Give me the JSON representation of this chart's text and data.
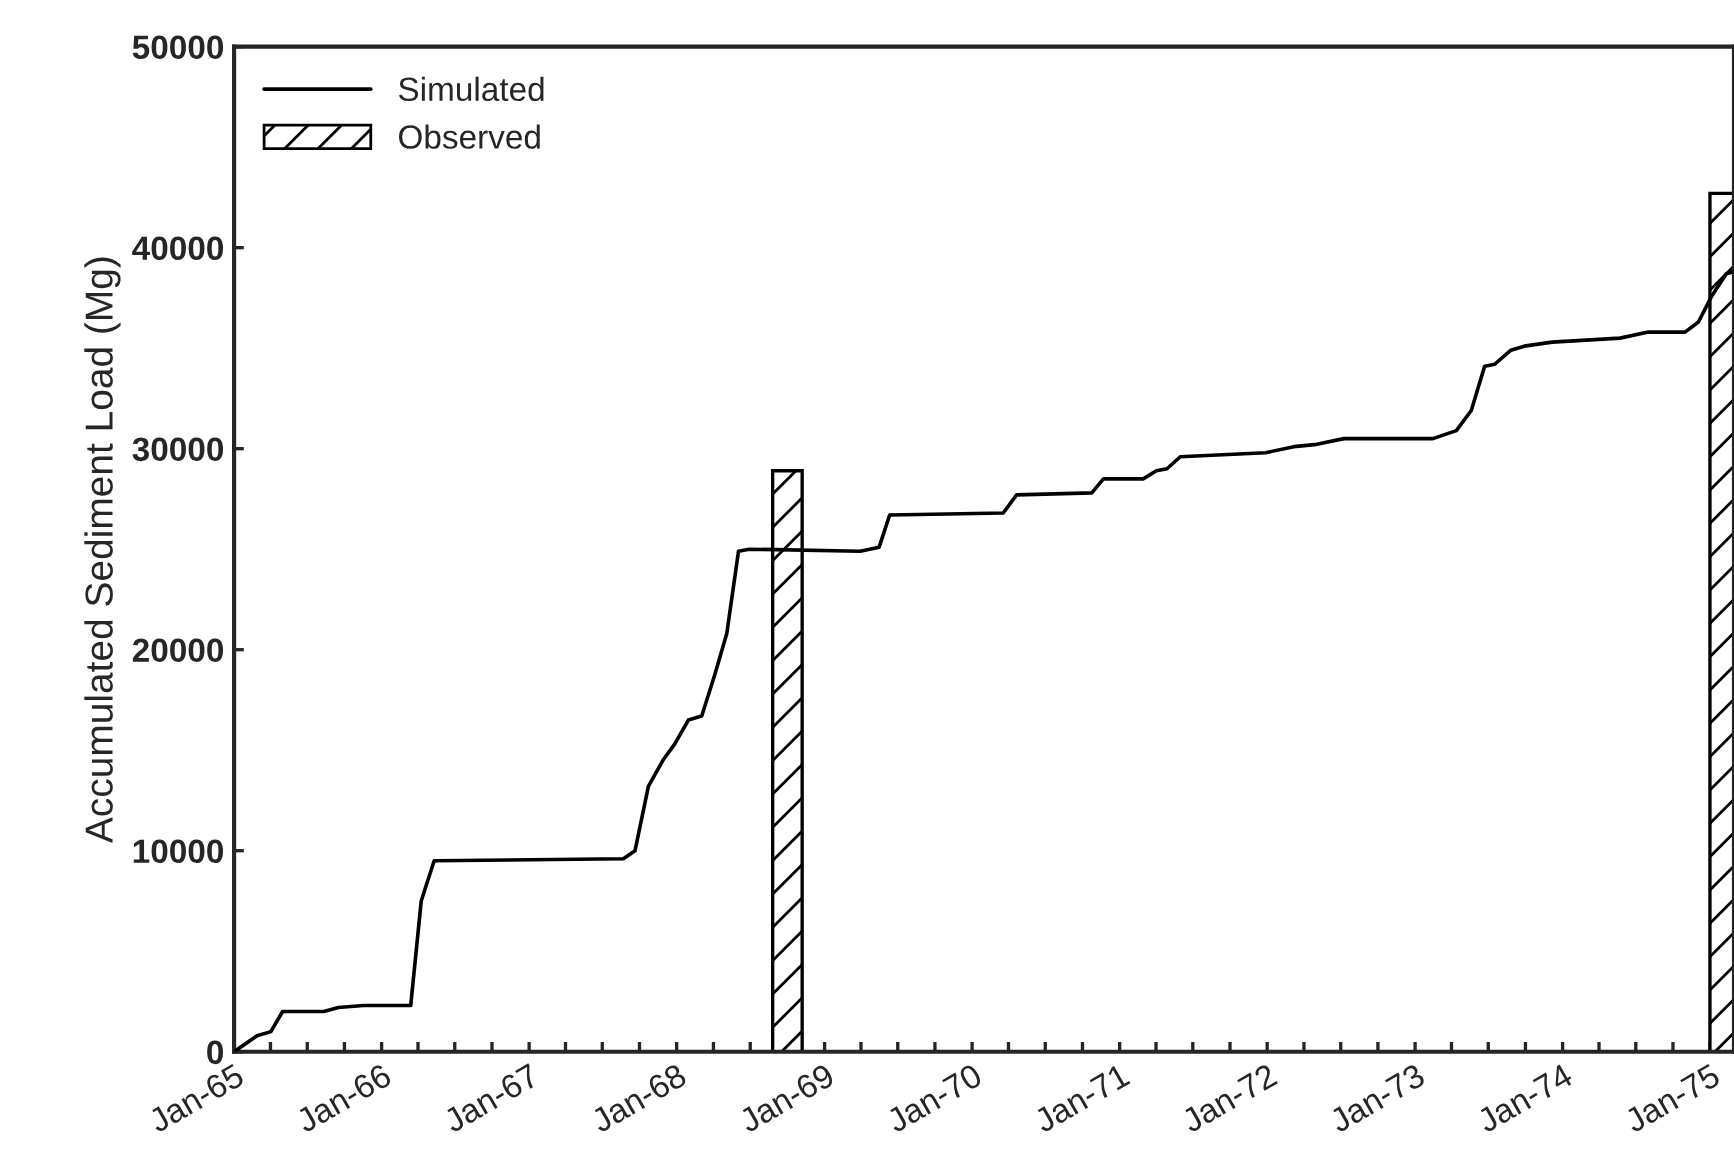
{
  "chart_data": {
    "type": "line",
    "ylabel": "Accumulated Sediment Load (Mg)",
    "xlim": [
      "1965-01-01",
      "1975-03-01"
    ],
    "ylim": [
      0,
      50000
    ],
    "yticks": [
      0,
      10000,
      20000,
      30000,
      40000,
      50000
    ],
    "xticks": [
      {
        "value": "1965-01-01",
        "label": "Jan-65"
      },
      {
        "value": "1965-04-01",
        "label": null
      },
      {
        "value": "1965-07-01",
        "label": null
      },
      {
        "value": "1965-10-01",
        "label": null
      },
      {
        "value": "1966-01-01",
        "label": "Jan-66"
      },
      {
        "value": "1966-04-01",
        "label": null
      },
      {
        "value": "1966-07-01",
        "label": null
      },
      {
        "value": "1966-10-01",
        "label": null
      },
      {
        "value": "1967-01-01",
        "label": "Jan-67"
      },
      {
        "value": "1967-04-01",
        "label": null
      },
      {
        "value": "1967-07-01",
        "label": null
      },
      {
        "value": "1967-10-01",
        "label": null
      },
      {
        "value": "1968-01-01",
        "label": "Jan-68"
      },
      {
        "value": "1968-04-01",
        "label": null
      },
      {
        "value": "1968-07-01",
        "label": null
      },
      {
        "value": "1968-10-01",
        "label": null
      },
      {
        "value": "1969-01-01",
        "label": "Jan-69"
      },
      {
        "value": "1969-04-01",
        "label": null
      },
      {
        "value": "1969-07-01",
        "label": null
      },
      {
        "value": "1969-10-01",
        "label": null
      },
      {
        "value": "1970-01-01",
        "label": "Jan-70"
      },
      {
        "value": "1970-04-01",
        "label": null
      },
      {
        "value": "1970-07-01",
        "label": null
      },
      {
        "value": "1970-10-01",
        "label": null
      },
      {
        "value": "1971-01-01",
        "label": "Jan-71"
      },
      {
        "value": "1971-04-01",
        "label": null
      },
      {
        "value": "1971-07-01",
        "label": null
      },
      {
        "value": "1971-10-01",
        "label": null
      },
      {
        "value": "1972-01-01",
        "label": "Jan-72"
      },
      {
        "value": "1972-04-01",
        "label": null
      },
      {
        "value": "1972-07-01",
        "label": null
      },
      {
        "value": "1972-10-01",
        "label": null
      },
      {
        "value": "1973-01-01",
        "label": "Jan-73"
      },
      {
        "value": "1973-04-01",
        "label": null
      },
      {
        "value": "1973-07-01",
        "label": null
      },
      {
        "value": "1973-10-01",
        "label": null
      },
      {
        "value": "1974-01-01",
        "label": "Jan-74"
      },
      {
        "value": "1974-04-01",
        "label": null
      },
      {
        "value": "1974-07-01",
        "label": null
      },
      {
        "value": "1974-10-01",
        "label": null
      },
      {
        "value": "1975-01-01",
        "label": "Jan-75"
      }
    ],
    "legend": "top left",
    "grid": false,
    "series": [
      {
        "name": "Simulated",
        "color": "#000000",
        "x": [
          "1965-01-01",
          "1965-02-27",
          "1965-04-02",
          "1965-05-01",
          "1965-08-11",
          "1965-09-16",
          "1965-11-17",
          "1966-03-14",
          "1966-04-09",
          "1966-05-11",
          "1967-08-22",
          "1967-09-20",
          "1967-10-23",
          "1967-11-28",
          "1967-12-27",
          "1968-01-30",
          "1968-03-03",
          "1968-04-05",
          "1968-05-04",
          "1968-06-02",
          "1968-06-28",
          "1969-03-30",
          "1969-05-16",
          "1969-06-11",
          "1970-03-19",
          "1970-04-21",
          "1970-10-24",
          "1970-11-22",
          "1971-02-28",
          "1971-04-02",
          "1971-04-28",
          "1971-05-31",
          "1971-12-28",
          "1972-03-07",
          "1972-04-27",
          "1972-07-09",
          "1973-02-14",
          "1973-04-13",
          "1973-05-20",
          "1973-06-22",
          "1973-07-17",
          "1973-08-26",
          "1973-09-28",
          "1973-12-06",
          "1974-05-23",
          "1974-08-01",
          "1974-10-31",
          "1974-12-03",
          "1975-01-05",
          "1975-02-10",
          "1975-02-28"
        ],
        "values": [
          0,
          800,
          1000,
          2000,
          2000,
          2200,
          2300,
          2300,
          7500,
          9500,
          9600,
          10000,
          13200,
          14500,
          15300,
          16500,
          16700,
          18800,
          20800,
          24900,
          25000,
          24900,
          25100,
          26700,
          26800,
          27700,
          27800,
          28500,
          28500,
          28900,
          29000,
          29600,
          29800,
          30100,
          30200,
          30500,
          30500,
          30900,
          31900,
          34100,
          34200,
          34900,
          35100,
          35300,
          35500,
          35800,
          35800,
          36300,
          37600,
          38700,
          38800
        ]
      },
      {
        "name": "Observed",
        "type": "bar",
        "color": "#000000",
        "x": [
          "1968-10-01",
          "1975-02-06"
        ],
        "values": [
          28900,
          42700
        ]
      }
    ]
  }
}
